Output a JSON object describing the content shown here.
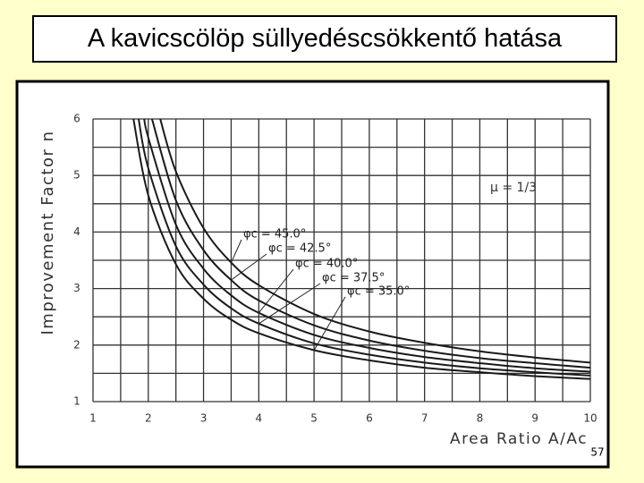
{
  "slide": {
    "title": "A kavicscölöp süllyedéscsökkentő hatása",
    "page_number": "57"
  },
  "chart_data": {
    "type": "line",
    "y_label": "Improvement Factor n",
    "x_label": "Area Ratio A/Ac",
    "annotation": "μ = 1/3",
    "xlim": [
      1,
      10
    ],
    "xticks": [
      1,
      2,
      3,
      4,
      5,
      6,
      7,
      8,
      9,
      10
    ],
    "ylim": [
      1,
      6
    ],
    "yticks": [
      1,
      2,
      3,
      4,
      5,
      6
    ],
    "grid": true,
    "series": [
      {
        "name": "φc = 45.0°",
        "color": "#1a1a1a",
        "x": [
          2.2,
          2.5,
          3,
          3.5,
          4,
          5,
          6,
          7,
          8,
          9,
          10
        ],
        "values": [
          6.06,
          5.07,
          4.07,
          3.46,
          3.06,
          2.55,
          2.24,
          2.04,
          1.89,
          1.78,
          1.69
        ]
      },
      {
        "name": "φc = 42.5°",
        "color": "#1a1a1a",
        "x": [
          2.05,
          2.5,
          3,
          3.5,
          4,
          5,
          6,
          7,
          8,
          9,
          10
        ],
        "values": [
          6.06,
          4.56,
          3.68,
          3.15,
          2.79,
          2.35,
          2.08,
          1.9,
          1.77,
          1.68,
          1.6
        ]
      },
      {
        "name": "φc = 40.0°",
        "color": "#1a1a1a",
        "x": [
          1.92,
          2,
          2.5,
          3,
          3.5,
          4,
          5,
          6,
          7,
          8,
          9,
          10
        ],
        "values": [
          6.08,
          5.67,
          4.13,
          3.35,
          2.88,
          2.57,
          2.18,
          1.95,
          1.79,
          1.68,
          1.59,
          1.53
        ]
      },
      {
        "name": "φc = 37.5°",
        "color": "#1a1a1a",
        "x": [
          1.82,
          2,
          2.5,
          3,
          3.5,
          4,
          5,
          6,
          7,
          8,
          9,
          10
        ],
        "values": [
          6.03,
          5.13,
          3.75,
          3.07,
          2.65,
          2.38,
          2.03,
          1.83,
          1.69,
          1.59,
          1.52,
          1.46
        ]
      },
      {
        "name": "φc = 35.0°",
        "color": "#1a1a1a",
        "x": [
          1.73,
          2,
          2.5,
          3,
          3.5,
          4,
          5,
          6,
          7,
          8,
          9,
          10
        ],
        "values": [
          6.01,
          4.65,
          3.43,
          2.82,
          2.45,
          2.21,
          1.91,
          1.73,
          1.6,
          1.52,
          1.45,
          1.4
        ]
      }
    ]
  }
}
